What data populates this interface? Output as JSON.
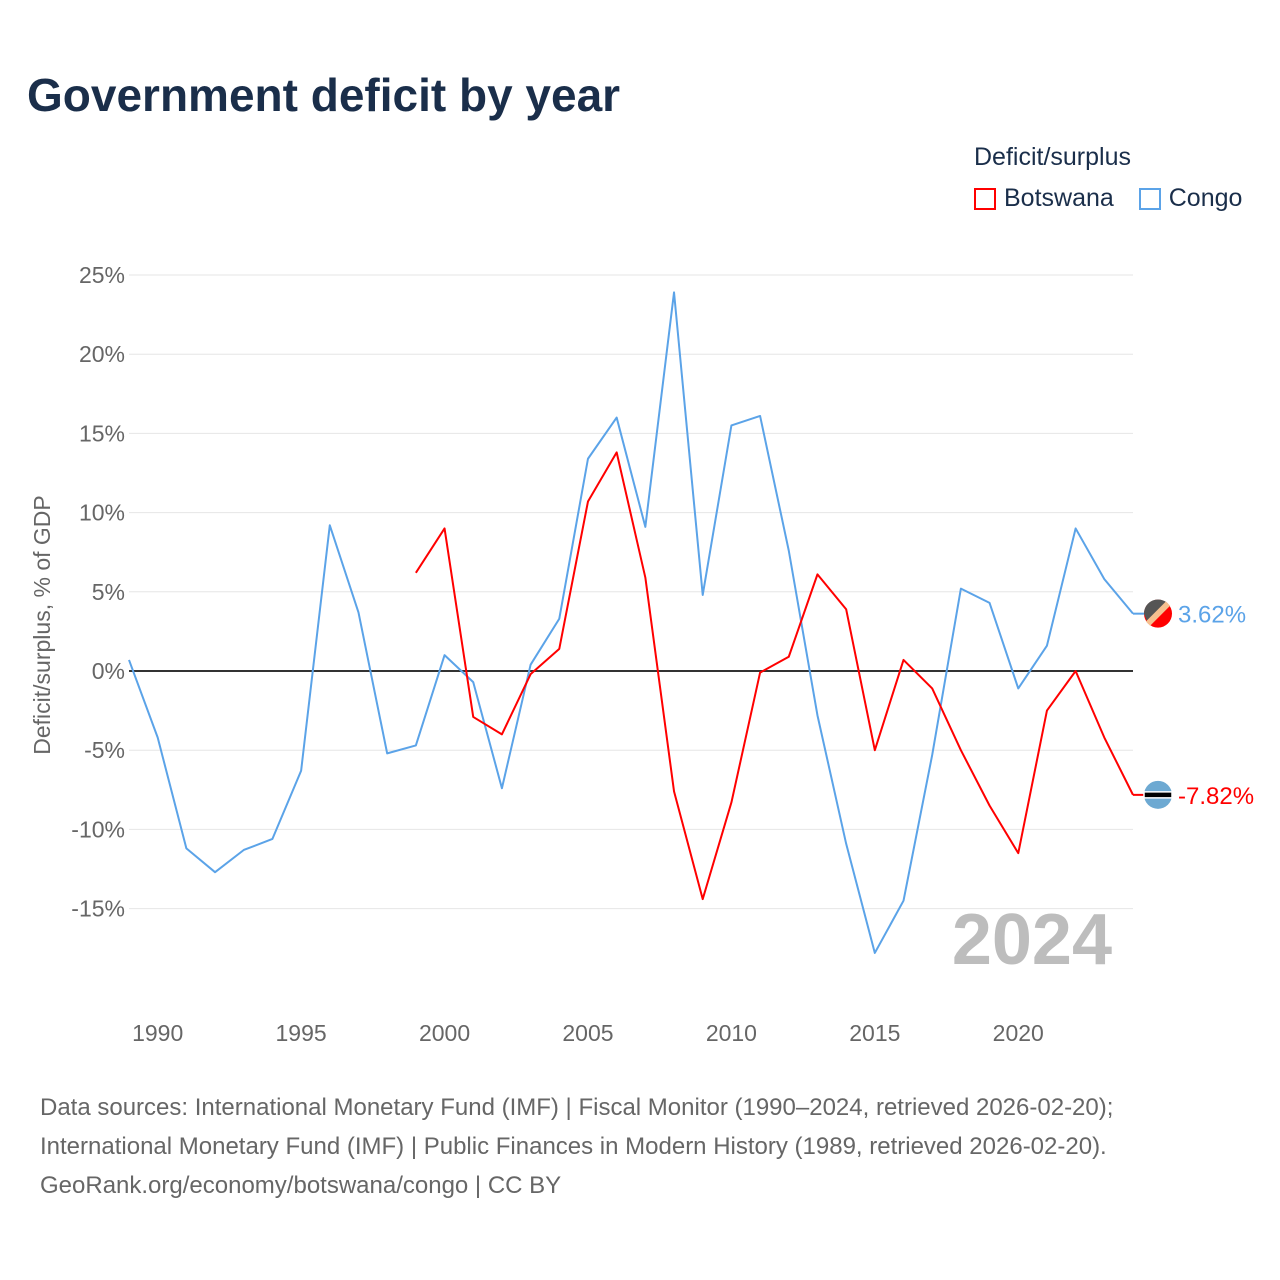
{
  "chart_data": {
    "type": "line",
    "title": "Government deficit by year",
    "ylabel": "Deficit/surplus, % of GDP",
    "xlabel": "",
    "ylim": [
      -20,
      25
    ],
    "xlim": [
      1989,
      2024
    ],
    "yticks": [
      25,
      20,
      15,
      10,
      5,
      0,
      -5,
      -10,
      -15
    ],
    "ytick_labels": [
      "25%",
      "20%",
      "15%",
      "10%",
      "5%",
      "0%",
      "-5%",
      "-10%",
      "-15%"
    ],
    "xticks": [
      1990,
      1995,
      2000,
      2005,
      2010,
      2015,
      2020
    ],
    "xtick_labels": [
      "1990",
      "1995",
      "2000",
      "2005",
      "2010",
      "2015",
      "2020"
    ],
    "grid": true,
    "legend_title": "Deficit/surplus",
    "legend_position": "top-right",
    "year_label": "2024",
    "series": [
      {
        "name": "Botswana",
        "color": "#ff0000",
        "end_label": "-7.82%",
        "x": [
          1999,
          2000,
          2001,
          2002,
          2003,
          2004,
          2005,
          2006,
          2007,
          2008,
          2009,
          2010,
          2011,
          2012,
          2013,
          2014,
          2015,
          2016,
          2017,
          2018,
          2019,
          2020,
          2021,
          2022,
          2023,
          2024
        ],
        "values": [
          6.2,
          9.0,
          -2.9,
          -4.0,
          -0.2,
          1.4,
          10.7,
          13.8,
          5.9,
          -7.6,
          -14.4,
          -8.3,
          -0.1,
          0.9,
          6.1,
          3.9,
          -5.0,
          0.7,
          -1.1,
          -5.0,
          -8.5,
          -11.5,
          -2.5,
          0.0,
          -4.2,
          -7.82
        ]
      },
      {
        "name": "Congo",
        "color": "#5ba3e8",
        "end_label": "3.62%",
        "x": [
          1989,
          1990,
          1991,
          1992,
          1993,
          1994,
          1995,
          1996,
          1997,
          1998,
          1999,
          2000,
          2001,
          2002,
          2003,
          2004,
          2005,
          2006,
          2007,
          2008,
          2009,
          2010,
          2011,
          2012,
          2013,
          2014,
          2015,
          2016,
          2017,
          2018,
          2019,
          2020,
          2021,
          2022,
          2023,
          2024
        ],
        "values": [
          0.7,
          -4.2,
          -11.2,
          -12.7,
          -11.3,
          -10.6,
          -6.3,
          9.2,
          3.7,
          -5.2,
          -4.7,
          1.0,
          -0.7,
          -7.4,
          0.4,
          3.3,
          13.4,
          16.0,
          9.1,
          23.9,
          4.8,
          15.5,
          16.1,
          7.6,
          -2.8,
          -10.9,
          -17.8,
          -14.5,
          -5.3,
          5.2,
          4.3,
          -1.1,
          1.6,
          9.0,
          5.8,
          3.62
        ]
      }
    ]
  },
  "footer": {
    "line1": "Data sources: International Monetary Fund (IMF) | Fiscal Monitor (1990–2024, retrieved 2026-02-20);",
    "line2": "International Monetary Fund (IMF) | Public Finances in Modern History (1989, retrieved 2026-02-20).",
    "line3": "GeoRank.org/economy/botswana/congo | CC BY"
  }
}
